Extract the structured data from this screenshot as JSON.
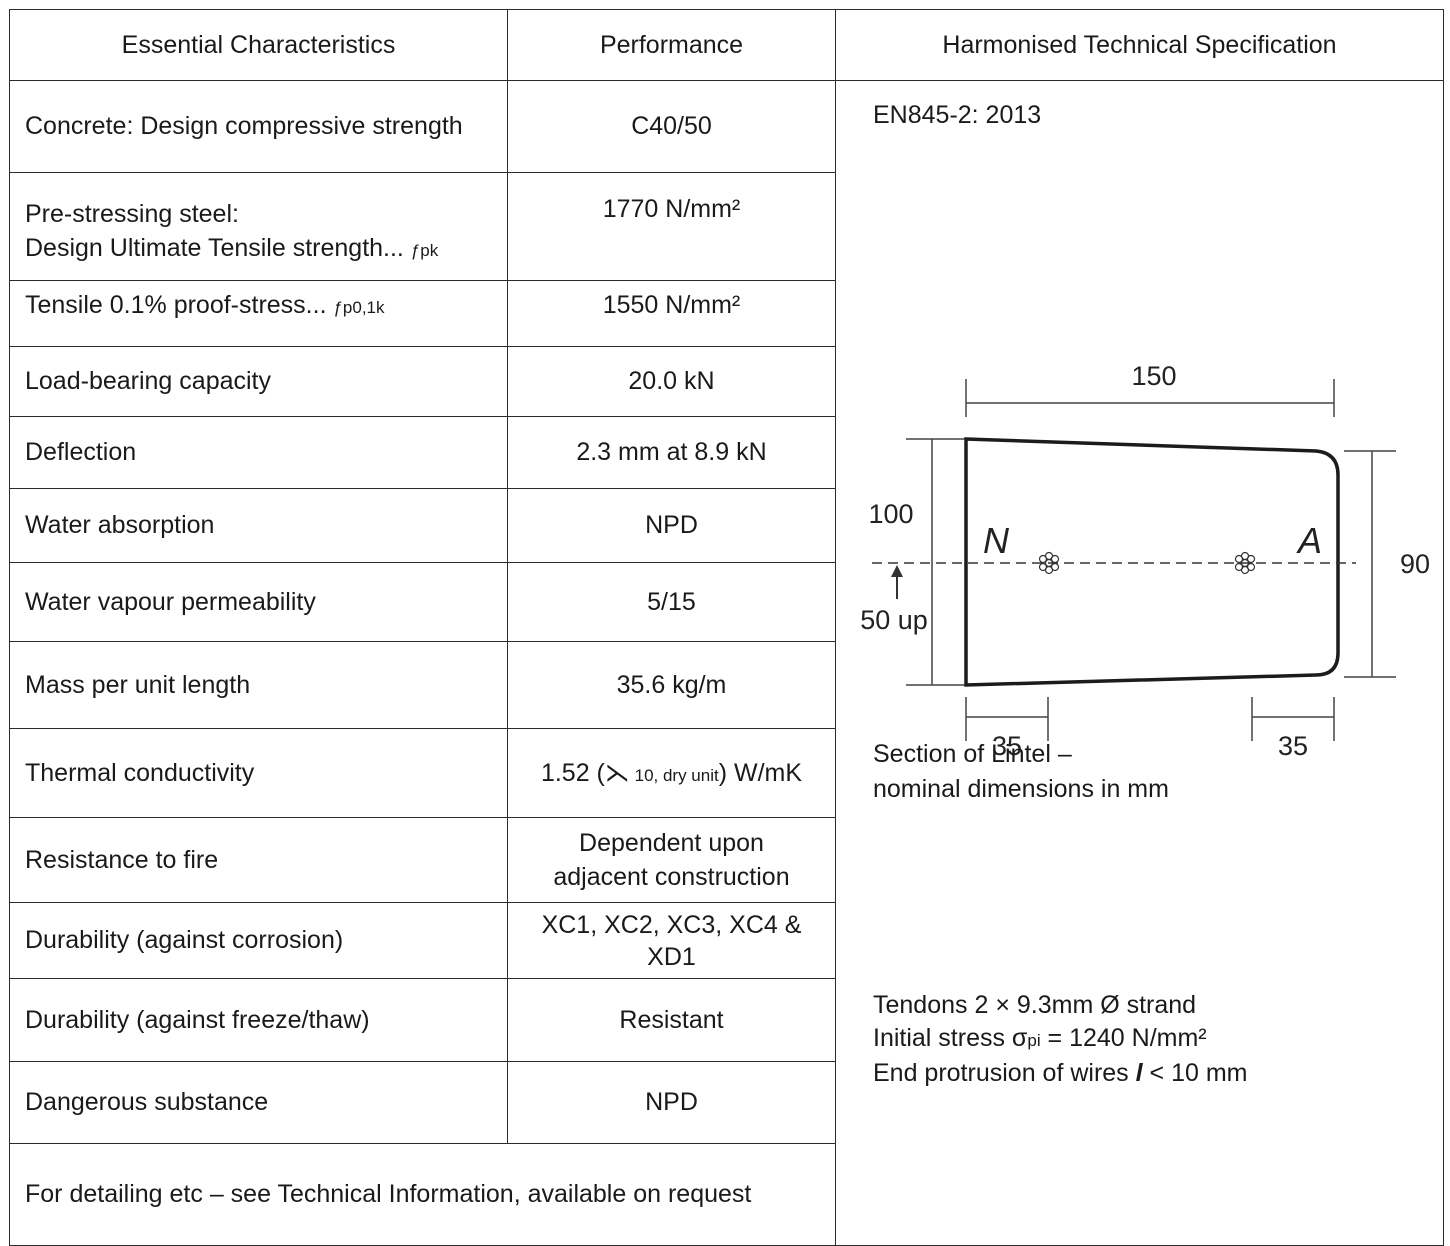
{
  "headers": {
    "characteristics": "Essential Characteristics",
    "performance": "Performance",
    "spec": "Harmonised Technical Specification"
  },
  "rows": {
    "concrete": {
      "label": "Concrete: Design compressive strength",
      "value": "C40/50"
    },
    "prestress": {
      "label_line1": "Pre-stressing steel:",
      "label_line2": "Design Ultimate Tensile strength...",
      "label_sub": "ƒpk",
      "value": "1770 N/mm²"
    },
    "proof": {
      "label": "Tensile 0.1% proof-stress...",
      "label_sub": "ƒp0,1k",
      "value": "1550 N/mm²"
    },
    "load": {
      "label": "Load-bearing capacity",
      "value": "20.0 kN"
    },
    "deflection": {
      "label": "Deflection",
      "value": "2.3 mm at 8.9 kN"
    },
    "water_abs": {
      "label": "Water absorption",
      "value": "NPD"
    },
    "vapour": {
      "label": "Water vapour permeability",
      "value": "5/15"
    },
    "mass": {
      "label": "Mass per unit length",
      "value": "35.6 kg/m"
    },
    "thermal": {
      "label": "Thermal conductivity",
      "value_pre": "1.52 (",
      "value_symbol": "⋋",
      "value_sub": " 10, dry unit",
      "value_post": ") W/mK"
    },
    "fire": {
      "label": "Resistance to fire",
      "value_line1": "Dependent upon",
      "value_line2": "adjacent construction"
    },
    "corrosion": {
      "label": "Durability (against corrosion)",
      "value_line1": "XC1, XC2, XC3, XC4 &",
      "value_line2": "XD1"
    },
    "freeze": {
      "label": "Durability (against freeze/thaw)",
      "value": "Resistant"
    },
    "dangerous": {
      "label": "Dangerous substance",
      "value": "NPD"
    }
  },
  "spec": {
    "standard": "EN845-2: 2013",
    "diagram": {
      "width_label": "150",
      "left_height_label": "100",
      "right_height_label": "90",
      "offset_label": "50 up",
      "left_inset_label": "35",
      "right_inset_label": "35",
      "left_letter": "N",
      "right_letter": "A"
    },
    "caption_line1": "Section of Lintel –",
    "caption_line2": "nominal dimensions in mm",
    "tendons_line1": "Tendons 2 × 9.3mm Ø strand",
    "tendons_line2_pre": "Initial stress σ",
    "tendons_line2_sub": "pi",
    "tendons_line2_post": " = 1240 N/mm²",
    "tendons_line3_pre": "End protrusion of wires ",
    "tendons_line3_symbol": "l",
    "tendons_line3_post": " < 10 mm"
  },
  "footer": "For detailing etc – see Technical Information, available on request"
}
